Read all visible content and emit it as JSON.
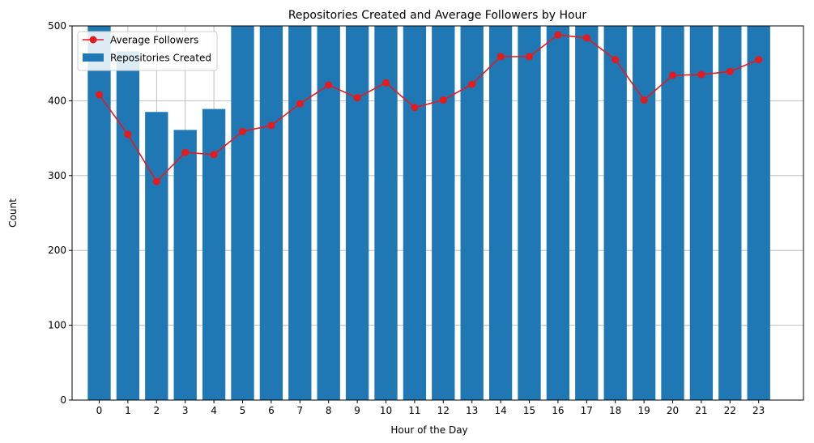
{
  "chart_data": {
    "type": "bar",
    "title": "Repositories Created and Average Followers by Hour",
    "xlabel": "Hour of the Day",
    "ylabel": "Count",
    "ylim": [
      0,
      500
    ],
    "yticks": [
      0,
      100,
      200,
      300,
      400,
      500
    ],
    "grid": true,
    "legend_placement": "upper-left",
    "categories": [
      "0",
      "1",
      "2",
      "3",
      "4",
      "5",
      "6",
      "7",
      "8",
      "9",
      "10",
      "11",
      "12",
      "13",
      "14",
      "15",
      "16",
      "17",
      "18",
      "19",
      "20",
      "21",
      "22",
      "23"
    ],
    "series": [
      {
        "name": "Average Followers",
        "kind": "line",
        "color": "#e41a1c",
        "values": [
          408,
          355,
          292,
          331,
          328,
          359,
          367,
          396,
          421,
          404,
          424,
          391,
          401,
          422,
          459,
          459,
          488,
          484,
          455,
          401,
          434,
          435,
          439,
          455
        ]
      },
      {
        "name": "Repositories Created",
        "kind": "bar",
        "color": "#1f77b4",
        "values": [
          520,
          466,
          385,
          361,
          389,
          520,
          520,
          520,
          520,
          520,
          520,
          520,
          520,
          520,
          520,
          520,
          520,
          520,
          520,
          520,
          520,
          520,
          520,
          520
        ]
      }
    ]
  }
}
